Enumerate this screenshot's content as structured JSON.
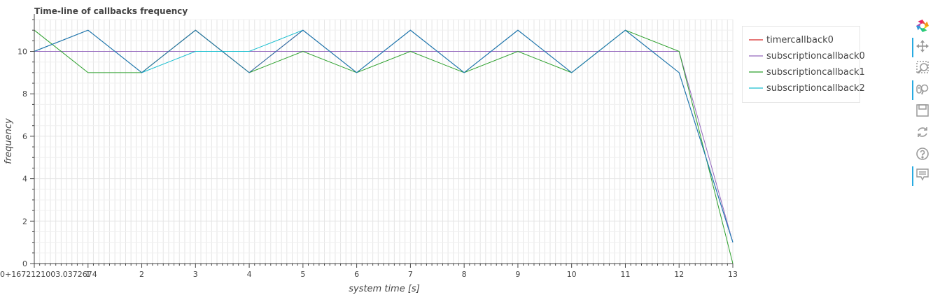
{
  "chart_data": {
    "type": "line",
    "title": "Time-line of callbacks frequency",
    "xlabel": "system time [s]",
    "ylabel": "frequency",
    "xlim": [
      0,
      13
    ],
    "ylim": [
      0,
      11.5
    ],
    "x_tick_labels": [
      "0+1672121003.0372674",
      "1",
      "2",
      "3",
      "4",
      "5",
      "6",
      "7",
      "8",
      "9",
      "10",
      "11",
      "12",
      "13"
    ],
    "y_tick_labels": [
      "0",
      "2",
      "4",
      "6",
      "8",
      "10"
    ],
    "grid": true,
    "legend_position": "top-right",
    "series": [
      {
        "name": "timercallback0",
        "color": "#d62728",
        "x": [
          0,
          1,
          2,
          3,
          4,
          5,
          6,
          7,
          8,
          9,
          10,
          11,
          12,
          13
        ],
        "y": [
          10,
          11,
          9,
          11,
          9,
          11,
          9,
          11,
          9,
          11,
          9,
          11,
          9,
          1
        ]
      },
      {
        "name": "subscriptioncallback0",
        "color": "#9467bd",
        "x": [
          0,
          1,
          2,
          3,
          4,
          5,
          6,
          7,
          8,
          9,
          10,
          11,
          12,
          13
        ],
        "y": [
          10,
          10,
          10,
          10,
          10,
          10,
          10,
          10,
          10,
          10,
          10,
          10,
          10,
          1
        ]
      },
      {
        "name": "subscriptioncallback1",
        "color": "#2ca02c",
        "x": [
          0,
          1,
          2,
          3,
          4,
          5,
          6,
          7,
          8,
          9,
          10,
          11,
          12,
          13
        ],
        "y": [
          11,
          9,
          9,
          11,
          9,
          10,
          9,
          10,
          9,
          10,
          9,
          11,
          10,
          0
        ]
      },
      {
        "name": "subscriptioncallback2",
        "color": "#17becf",
        "x": [
          0,
          1,
          2,
          3,
          4,
          5,
          6,
          7,
          8,
          9,
          10,
          11,
          12,
          13
        ],
        "y": [
          10,
          11,
          9,
          10,
          10,
          11,
          9,
          11,
          9,
          11,
          9,
          11,
          9,
          1
        ]
      },
      {
        "color": "#1f77b4",
        "x": [
          0,
          1,
          2,
          3,
          4,
          5,
          6,
          7,
          8,
          9,
          10,
          11,
          12,
          13
        ],
        "y": [
          10,
          11,
          9,
          11,
          9,
          11,
          9,
          11,
          9,
          11,
          9,
          11,
          9,
          1
        ]
      }
    ]
  },
  "toolbar": {
    "tools": [
      {
        "icon": "bokeh-logo-icon",
        "active": false
      },
      {
        "icon": "pan-icon",
        "active": true
      },
      {
        "icon": "box-zoom-icon",
        "active": false
      },
      {
        "icon": "wheel-zoom-icon",
        "active": true
      },
      {
        "icon": "save-icon",
        "active": false
      },
      {
        "icon": "reset-icon",
        "active": false
      },
      {
        "icon": "help-icon",
        "active": false
      },
      {
        "icon": "hover-icon",
        "active": true
      }
    ]
  }
}
